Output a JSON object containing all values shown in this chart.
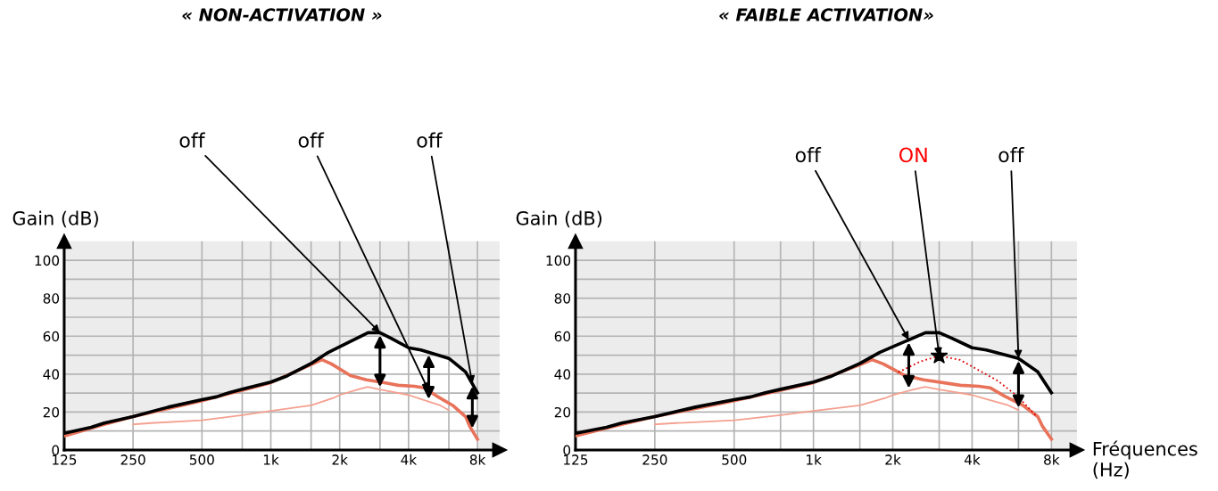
{
  "chart_data": [
    {
      "type": "line",
      "title": "« NON-ACTIVATION »",
      "ylabel": "Gain (dB)",
      "log": "x",
      "grid": true,
      "xlim": [
        125,
        10000
      ],
      "xticks": [
        {
          "value": 125,
          "label": "125"
        },
        {
          "value": 250,
          "label": "250"
        },
        {
          "value": 500,
          "label": "500"
        },
        {
          "value": 750,
          "label": null
        },
        {
          "value": 1000,
          "label": "1k"
        },
        {
          "value": 1500,
          "label": null
        },
        {
          "value": 2000,
          "label": "2k"
        },
        {
          "value": 3000,
          "label": null
        },
        {
          "value": 4000,
          "label": "4k"
        },
        {
          "value": 6000,
          "label": null
        },
        {
          "value": 8000,
          "label": "8k"
        }
      ],
      "ylim": [
        0,
        110
      ],
      "yticks": [
        0,
        {
          "value": 10,
          "label": null
        },
        20,
        {
          "value": 30,
          "label": null
        },
        40,
        {
          "value": 50,
          "label": null
        },
        60,
        {
          "value": 70,
          "label": null
        },
        80,
        {
          "value": 90,
          "label": null
        },
        100
      ],
      "series": [
        {
          "color": "#f4a090",
          "x": [
            250,
            300,
            500,
            750,
            1000,
            1500,
            1900,
            2000,
            2400,
            2650,
            3000,
            4000,
            4500,
            5500,
            6000
          ],
          "values": [
            13.5,
            14.2,
            15.7,
            18.4,
            20.6,
            23.5,
            27.7,
            29,
            31.9,
            33.3,
            31.9,
            29,
            26.9,
            23.5,
            21
          ]
        },
        {
          "color": "#e8735a",
          "x": [
            125,
            187,
            250,
            500,
            750,
            1000,
            1500,
            1670,
            1840,
            2230,
            2620,
            3180,
            3610,
            4250,
            4680,
            5300,
            6240,
            7100,
            7400,
            8000
          ],
          "values": [
            7.4,
            13.5,
            17.6,
            26,
            31.5,
            35.5,
            45,
            47.6,
            45.4,
            39.2,
            37,
            35.3,
            34.1,
            33.6,
            32.8,
            28.5,
            23.5,
            17.6,
            12.5,
            5.7
          ]
        },
        {
          "color": "#000000",
          "x": [
            125,
            164,
            187,
            250,
            356,
            500,
            578,
            656,
            750,
            1000,
            1175,
            1500,
            1780,
            2000,
            2660,
            3000,
            3340,
            4000,
            4530,
            5500,
            6000,
            7100,
            8000
          ],
          "values": [
            8.8,
            12,
            14.2,
            17.6,
            22.6,
            26.5,
            28,
            30.2,
            32,
            35.8,
            39,
            45.6,
            51.4,
            54.4,
            61.8,
            61.8,
            59,
            53.9,
            52.7,
            49.7,
            48.3,
            41.2,
            30.2
          ]
        }
      ],
      "annotations": [
        {
          "text": "off",
          "x": 3000,
          "y": 61.8
        },
        {
          "text": "off",
          "x": 4900,
          "y": 31.2
        },
        {
          "text": "off",
          "x": 7600,
          "y": 34.9
        }
      ]
    },
    {
      "type": "line",
      "title": "« FAIBLE ACTIVATION»",
      "ylabel": "Gain (dB)",
      "xlabel": "Fréquences (Hz)",
      "log": "x",
      "grid": true,
      "xlim": [
        125,
        10000
      ],
      "xticks": [
        {
          "value": 125,
          "label": "125"
        },
        {
          "value": 250,
          "label": "250"
        },
        {
          "value": 500,
          "label": "500"
        },
        {
          "value": 750,
          "label": null
        },
        {
          "value": 1000,
          "label": "1k"
        },
        {
          "value": 1500,
          "label": null
        },
        {
          "value": 2000,
          "label": "2k"
        },
        {
          "value": 3000,
          "label": null
        },
        {
          "value": 4000,
          "label": "4k"
        },
        {
          "value": 6000,
          "label": null
        },
        {
          "value": 8000,
          "label": "8k"
        }
      ],
      "ylim": [
        0,
        110
      ],
      "yticks": [
        0,
        {
          "value": 10,
          "label": null
        },
        20,
        {
          "value": 30,
          "label": null
        },
        40,
        {
          "value": 50,
          "label": null
        },
        60,
        {
          "value": 70,
          "label": null
        },
        80,
        {
          "value": 90,
          "label": null
        },
        100
      ],
      "series": [
        {
          "color": "#f4a090",
          "x": [
            250,
            300,
            500,
            750,
            1000,
            1500,
            1900,
            2000,
            2400,
            2650,
            3000,
            4000,
            4500,
            5500,
            6000
          ],
          "values": [
            13.5,
            14.2,
            15.7,
            18.4,
            20.6,
            23.5,
            27.7,
            29,
            31.9,
            33.3,
            31.9,
            29,
            26.9,
            23.5,
            21
          ]
        },
        {
          "color": "#e8735a",
          "x": [
            125,
            187,
            250,
            500,
            750,
            1000,
            1500,
            1670,
            1840,
            2230,
            2620,
            3180,
            3610,
            4250,
            4680,
            5300,
            6240,
            7100,
            7400,
            8000
          ],
          "values": [
            7.4,
            13.5,
            17.6,
            26,
            31.5,
            35.5,
            45,
            47.6,
            45.4,
            39.2,
            37,
            35.3,
            34.1,
            33.6,
            32.8,
            28.5,
            23.5,
            17.6,
            12.5,
            5.7
          ]
        },
        {
          "color": "#000000",
          "x": [
            125,
            164,
            187,
            250,
            356,
            500,
            578,
            656,
            750,
            1000,
            1175,
            1500,
            1780,
            2000,
            2660,
            3000,
            3340,
            4000,
            4530,
            5500,
            6000,
            7100,
            8000
          ],
          "values": [
            8.8,
            12,
            14.2,
            17.6,
            22.6,
            26.5,
            28,
            30.2,
            32,
            35.8,
            39,
            45.6,
            51.4,
            54.4,
            61.8,
            61.8,
            59,
            53.9,
            52.7,
            49.7,
            48.3,
            41.2,
            30.2
          ]
        },
        {
          "color": "#dd0000",
          "line_style": "dotted",
          "x": [
            2100,
            2550,
            3000,
            3600,
            4000,
            5000,
            6000,
            7000
          ],
          "values": [
            41,
            46.7,
            49.6,
            47.5,
            44,
            36.5,
            27.9,
            18
          ]
        }
      ],
      "annotations": [
        {
          "text": "off",
          "x": 2300,
          "y": 58.0
        },
        {
          "text": "ON",
          "x": 3000,
          "y": 49.6
        },
        {
          "text": "off",
          "x": 6000,
          "y": 48.3
        }
      ]
    }
  ]
}
